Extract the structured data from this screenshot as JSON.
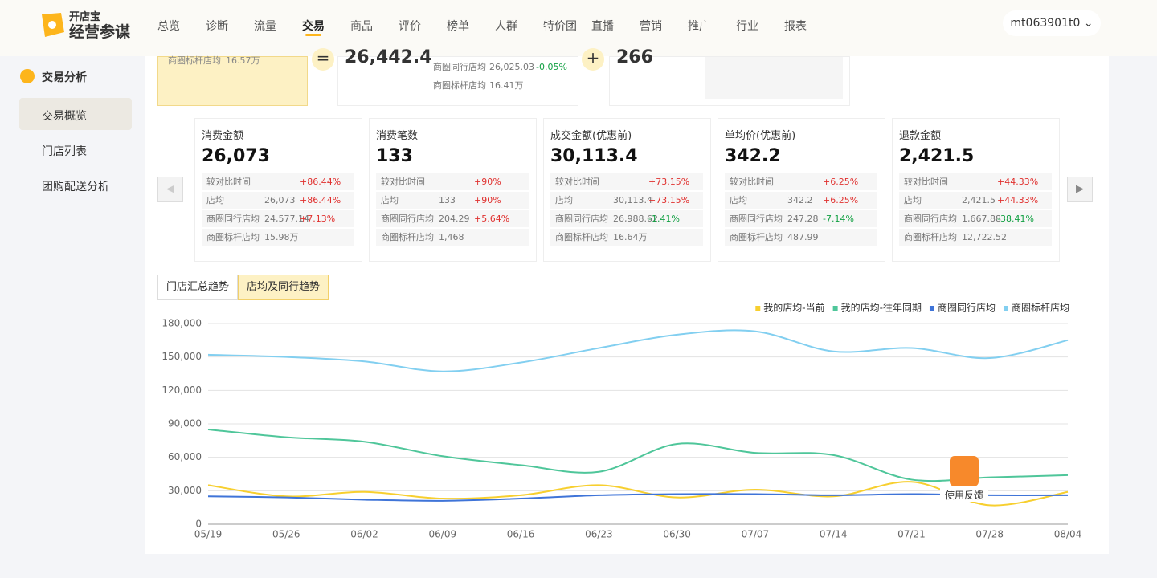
{
  "header": {
    "logo_top": "开店宝",
    "logo_bottom": "经营参谋",
    "nav": [
      "总览",
      "诊断",
      "流量",
      "交易",
      "商品",
      "评价",
      "榜单",
      "人群",
      "特价团",
      "直播",
      "营销",
      "推广",
      "行业",
      "报表"
    ],
    "user": "mt063901t0"
  },
  "sidebar": {
    "group": "交易分析",
    "items": [
      "交易概览",
      "门店列表",
      "团购配送分析"
    ]
  },
  "summary_partial": {
    "card_a": {
      "label": "商圈标杆店均",
      "value": "16.57万"
    },
    "card_b": {
      "value": "26,442.4",
      "rows": [
        {
          "label": "商圈同行店均",
          "value": "26,025.03",
          "change": "-0.05%"
        },
        {
          "label": "商圈标杆店均",
          "value": "16.41万"
        }
      ]
    },
    "card_c": {
      "value": "266"
    }
  },
  "metrics": [
    {
      "title": "消费金额",
      "value": "26,073",
      "rows": [
        {
          "label": "较对比时间",
          "change": "+86.44%"
        },
        {
          "label": "店均",
          "value": "26,073",
          "change": "+86.44%"
        },
        {
          "label": "商圈同行店均",
          "value": "24,577.14",
          "change": "+7.13%"
        },
        {
          "label": "商圈标杆店均",
          "value": "15.98万"
        }
      ]
    },
    {
      "title": "消费笔数",
      "value": "133",
      "rows": [
        {
          "label": "较对比时间",
          "change": "+90%"
        },
        {
          "label": "店均",
          "value": "133",
          "change": "+90%"
        },
        {
          "label": "商圈同行店均",
          "value": "204.29",
          "change": "+5.64%"
        },
        {
          "label": "商圈标杆店均",
          "value": "1,468"
        }
      ]
    },
    {
      "title": "成交金额(优惠前)",
      "value": "30,113.4",
      "rows": [
        {
          "label": "较对比时间",
          "change": "+73.15%"
        },
        {
          "label": "店均",
          "value": "30,113.4",
          "change": "+73.15%"
        },
        {
          "label": "商圈同行店均",
          "value": "26,988.62",
          "change": "-1.41%"
        },
        {
          "label": "商圈标杆店均",
          "value": "16.64万"
        }
      ]
    },
    {
      "title": "单均价(优惠前)",
      "value": "342.2",
      "rows": [
        {
          "label": "较对比时间",
          "change": "+6.25%"
        },
        {
          "label": "店均",
          "value": "342.2",
          "change": "+6.25%"
        },
        {
          "label": "商圈同行店均",
          "value": "247.28",
          "change": "-7.14%"
        },
        {
          "label": "商圈标杆店均",
          "value": "487.99"
        }
      ]
    },
    {
      "title": "退款金额",
      "value": "2,421.5",
      "rows": [
        {
          "label": "较对比时间",
          "change": "+44.33%"
        },
        {
          "label": "店均",
          "value": "2,421.5",
          "change": "+44.33%"
        },
        {
          "label": "商圈同行店均",
          "value": "1,667.88",
          "change": "-38.41%"
        },
        {
          "label": "商圈标杆店均",
          "value": "12,722.52"
        }
      ]
    }
  ],
  "tabs": [
    "门店汇总趋势",
    "店均及同行趋势"
  ],
  "chart_data": {
    "type": "line",
    "categories": [
      "05/19",
      "05/26",
      "06/02",
      "06/09",
      "06/16",
      "06/23",
      "06/30",
      "07/07",
      "07/14",
      "07/21",
      "07/28",
      "08/04"
    ],
    "series": [
      {
        "name": "我的店均-当前",
        "color": "#f7cf2f",
        "values": [
          35000,
          25000,
          29000,
          23000,
          26000,
          35000,
          24000,
          31000,
          25000,
          38000,
          17000,
          29000
        ]
      },
      {
        "name": "我的店均-往年同期",
        "color": "#4fc69a",
        "values": [
          85000,
          78000,
          74000,
          61000,
          53000,
          47000,
          72000,
          64000,
          62000,
          40000,
          42000,
          44000
        ]
      },
      {
        "name": "商圈同行店均",
        "color": "#3f74d8",
        "values": [
          25000,
          24000,
          22000,
          21000,
          23000,
          26000,
          27000,
          27000,
          26000,
          27000,
          26000,
          26000
        ]
      },
      {
        "name": "商圈标杆店均",
        "color": "#82cff0",
        "values": [
          152000,
          150000,
          146000,
          137000,
          145000,
          158000,
          170000,
          173000,
          155000,
          158000,
          149000,
          165000
        ]
      }
    ],
    "ylim": [
      0,
      180000
    ],
    "yticks": [
      0,
      {
        "value": 30000,
        "label": "30,000"
      },
      {
        "value": 60000,
        "label": "60,000"
      },
      {
        "value": 90000,
        "label": "90,000"
      },
      {
        "value": 120000,
        "label": "120,000"
      },
      {
        "value": 150000,
        "label": "150,000"
      },
      {
        "value": 180000,
        "label": "180,000"
      }
    ],
    "grid": true,
    "legend": "top-right"
  },
  "feedback": "使用反馈"
}
